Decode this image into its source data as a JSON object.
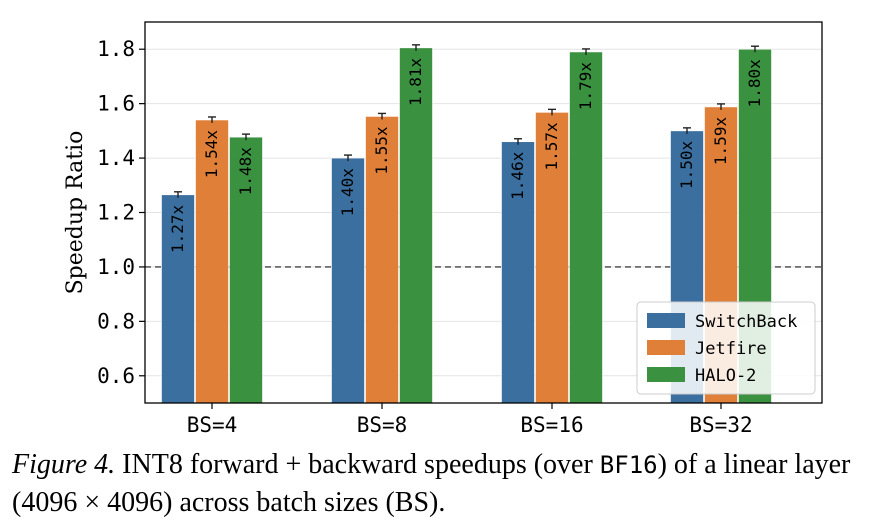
{
  "chart_data": {
    "type": "bar",
    "ylabel": "Speedup Ratio",
    "categories": [
      "BS=4",
      "BS=8",
      "BS=16",
      "BS=32"
    ],
    "ylim": [
      0.5,
      1.9
    ],
    "yticks": [
      "0.6",
      "0.8",
      "1.0",
      "1.2",
      "1.4",
      "1.6",
      "1.8"
    ],
    "baseline": 1.0,
    "legend_position": "lower-right",
    "series": [
      {
        "name": "SwitchBack",
        "color": "#3a6f9f",
        "values": [
          1.265,
          1.4,
          1.46,
          1.5
        ],
        "labels": [
          "1.27x",
          "1.40x",
          "1.46x",
          "1.50x"
        ]
      },
      {
        "name": "Jetfire",
        "color": "#e07f38",
        "values": [
          1.54,
          1.553,
          1.568,
          1.588
        ],
        "labels": [
          "1.54x",
          "1.55x",
          "1.57x",
          "1.59x"
        ]
      },
      {
        "name": "HALO-2",
        "color": "#3a9140",
        "values": [
          1.477,
          1.805,
          1.79,
          1.8
        ],
        "labels": [
          "1.48x",
          "1.81x",
          "1.79x",
          "1.80x"
        ]
      }
    ]
  },
  "caption": {
    "figure_label": "Figure 4.",
    "text_part1": " INT8 forward + backward speedups (over ",
    "mono_text": "BF16",
    "text_part2": ") of a linear layer (4096 × 4096) across batch sizes (BS)."
  }
}
